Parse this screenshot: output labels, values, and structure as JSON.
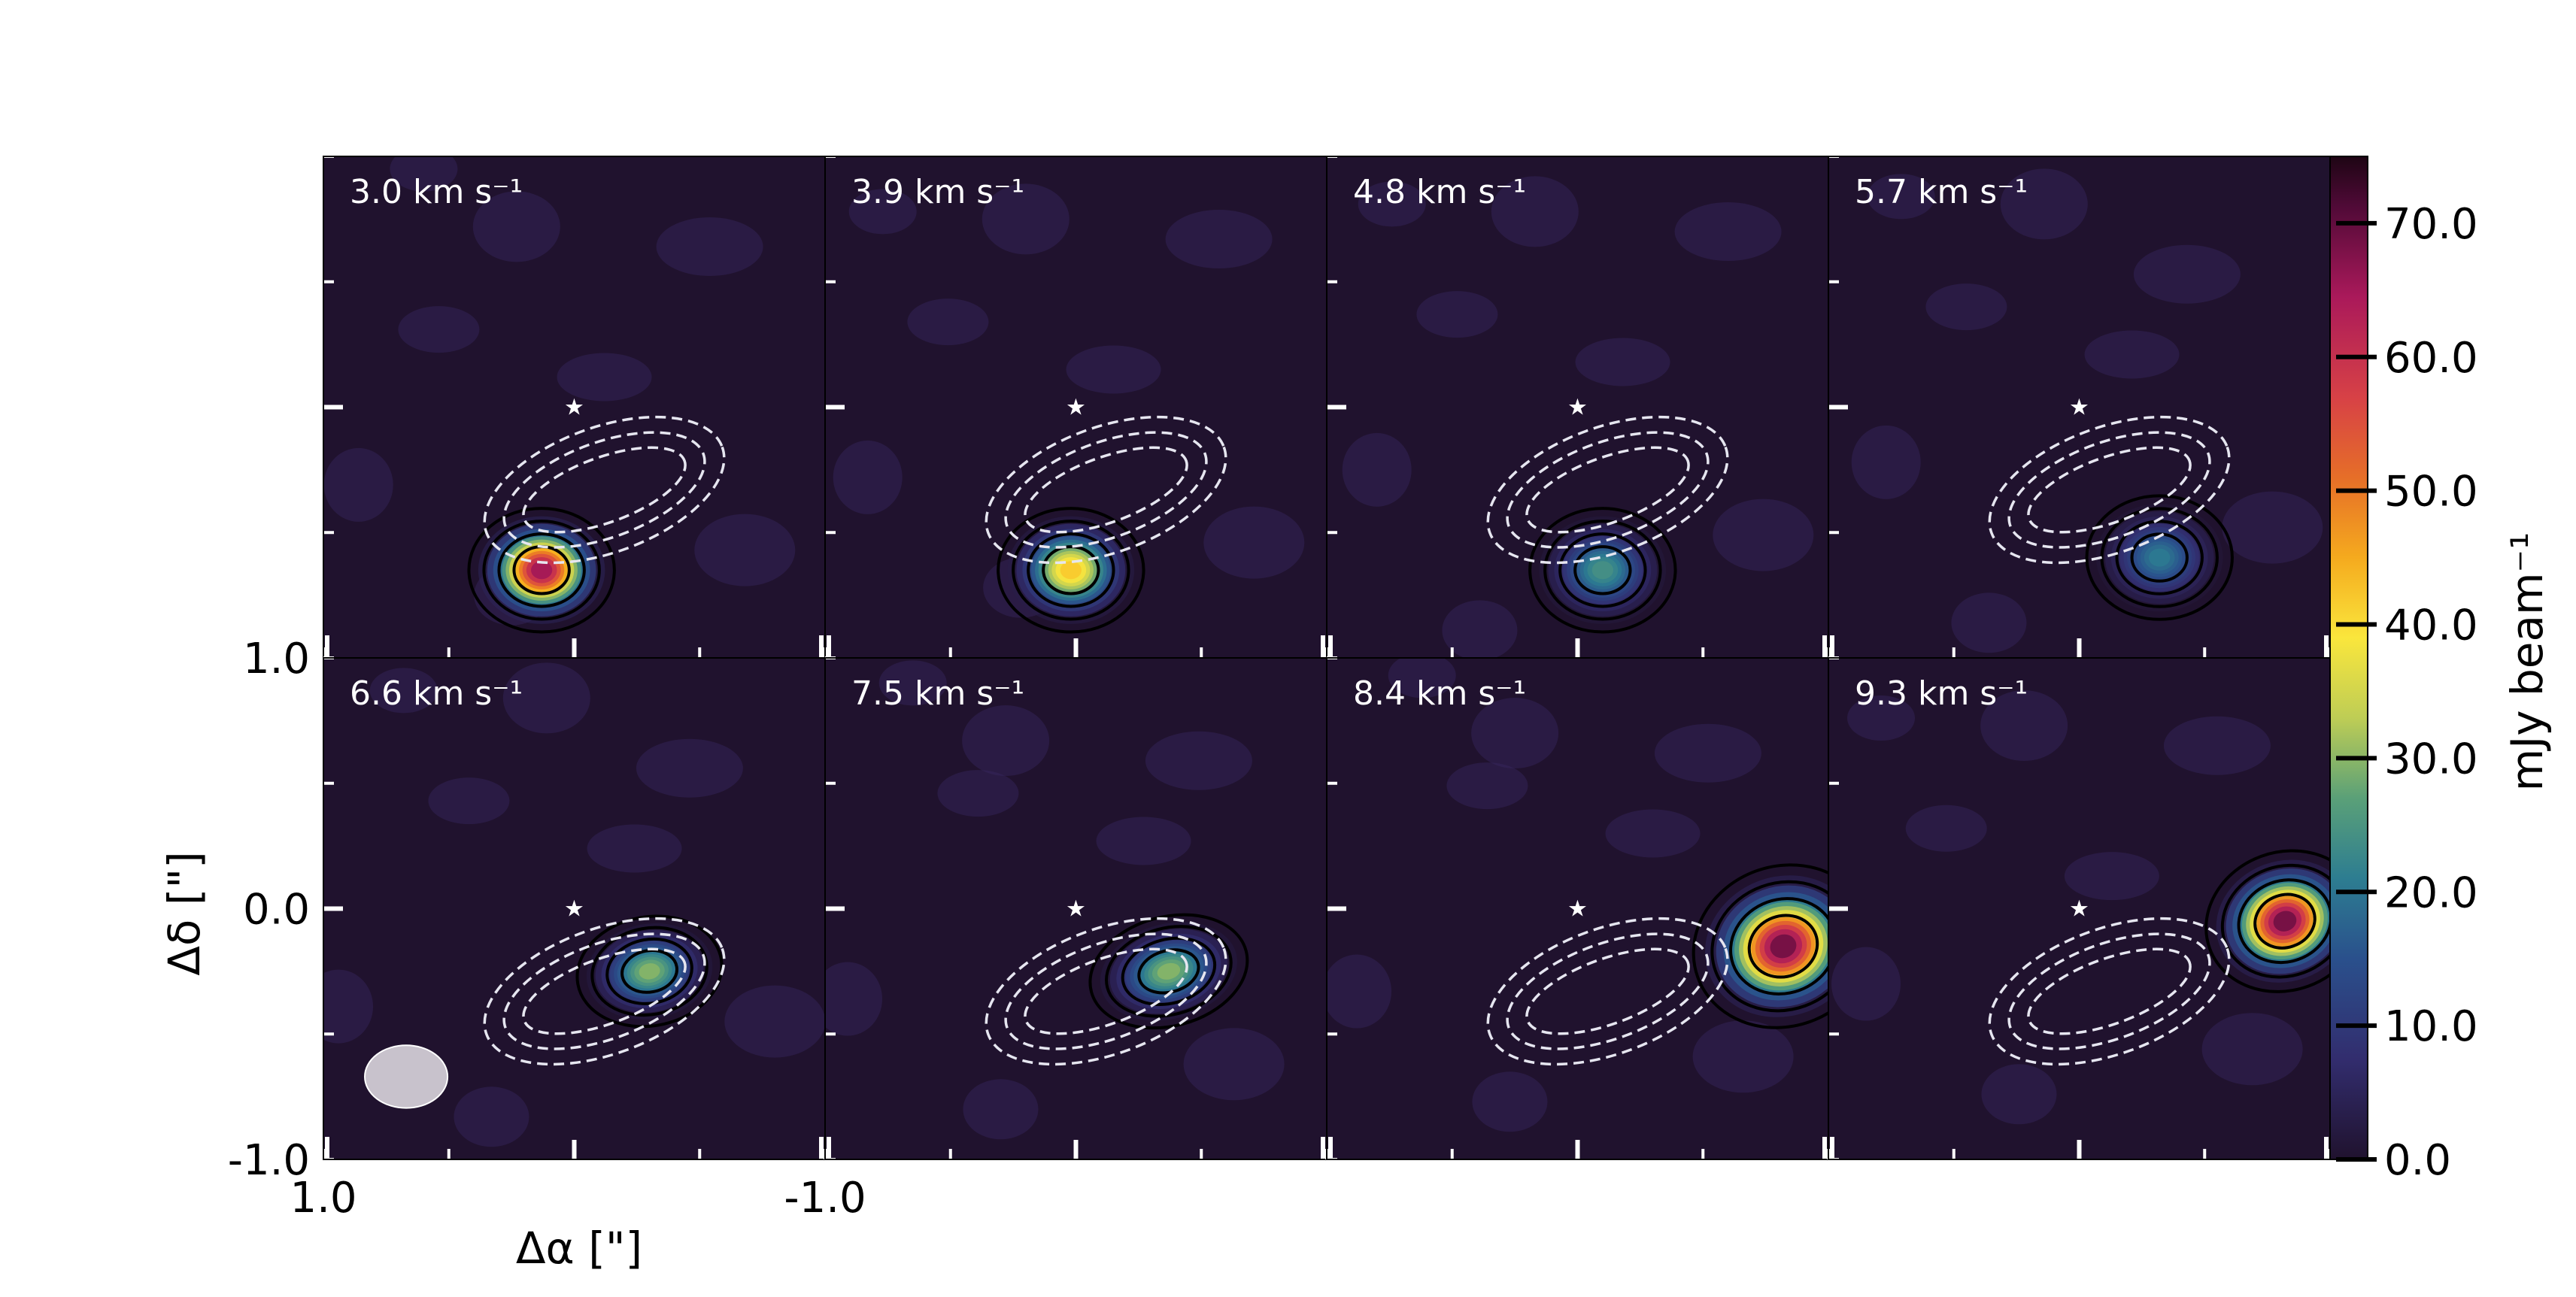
{
  "chart_data": {
    "type": "heatmap",
    "description_layout": "2x4 grid of channel maps",
    "panels": [
      {
        "label": "3.0 km s⁻¹",
        "velocity": 3.0,
        "emission": {
          "ra": 0.13,
          "dec": -0.65,
          "peak": 70,
          "sx": 0.2,
          "sy": 0.17,
          "angle": 0
        }
      },
      {
        "label": "3.9 km s⁻¹",
        "velocity": 3.9,
        "emission": {
          "ra": 0.02,
          "dec": -0.65,
          "peak": 45,
          "sx": 0.2,
          "sy": 0.17,
          "angle": 0
        }
      },
      {
        "label": "4.8 km s⁻¹",
        "velocity": 4.8,
        "emission": {
          "ra": -0.1,
          "dec": -0.65,
          "peak": 26,
          "sx": 0.2,
          "sy": 0.17,
          "angle": 0
        }
      },
      {
        "label": "5.7 km s⁻¹",
        "velocity": 5.7,
        "emission": {
          "ra": -0.32,
          "dec": -0.6,
          "peak": 22,
          "sx": 0.2,
          "sy": 0.17,
          "angle": 0
        }
      },
      {
        "label": "6.6 km s⁻¹",
        "velocity": 6.6,
        "emission": {
          "ra": -0.3,
          "dec": -0.25,
          "peak": 32,
          "sx": 0.2,
          "sy": 0.15,
          "angle": -10
        }
      },
      {
        "label": "7.5 km s⁻¹",
        "velocity": 7.5,
        "emission": {
          "ra": -0.37,
          "dec": -0.25,
          "peak": 32,
          "sx": 0.22,
          "sy": 0.15,
          "angle": -15
        }
      },
      {
        "label": "8.4 km s⁻¹",
        "velocity": 8.4,
        "emission": {
          "ra": -0.82,
          "dec": -0.15,
          "peak": 74,
          "sx": 0.25,
          "sy": 0.22,
          "angle": -20
        }
      },
      {
        "label": "9.3 km s⁻¹",
        "velocity": 9.3,
        "emission": {
          "ra": -0.82,
          "dec": -0.05,
          "peak": 74,
          "sx": 0.22,
          "sy": 0.19,
          "angle": -20
        }
      }
    ],
    "dashed_contour_source": {
      "ra": -0.12,
      "dec": -0.33,
      "angle": -20
    },
    "star_position": {
      "ra": 0.0,
      "dec": 0.0
    },
    "beam": {
      "ra": 0.67,
      "dec": -0.67,
      "major": 0.33,
      "minor": 0.25,
      "angle": 0
    },
    "xlabel": "Δα [\"]",
    "ylabel": "Δδ [\"]",
    "xticks": [
      "1.0",
      "-1.0"
    ],
    "yticks": [
      "1.0",
      "0.0",
      "-1.0"
    ],
    "xlim": [
      1.0,
      -1.0
    ],
    "ylim": [
      -1.0,
      1.0
    ],
    "colorbar": {
      "label": "mJy beam⁻¹",
      "min": 0,
      "max": 75,
      "ticks": [
        "0.0",
        "10.0",
        "20.0",
        "30.0",
        "40.0",
        "50.0",
        "60.0",
        "70.0"
      ],
      "colormap": "inferno-like"
    }
  },
  "colors": {
    "background": "#20122e",
    "contour": "#000000",
    "dashed_contour": "#e6e6f0",
    "labels": "#ffffff"
  }
}
